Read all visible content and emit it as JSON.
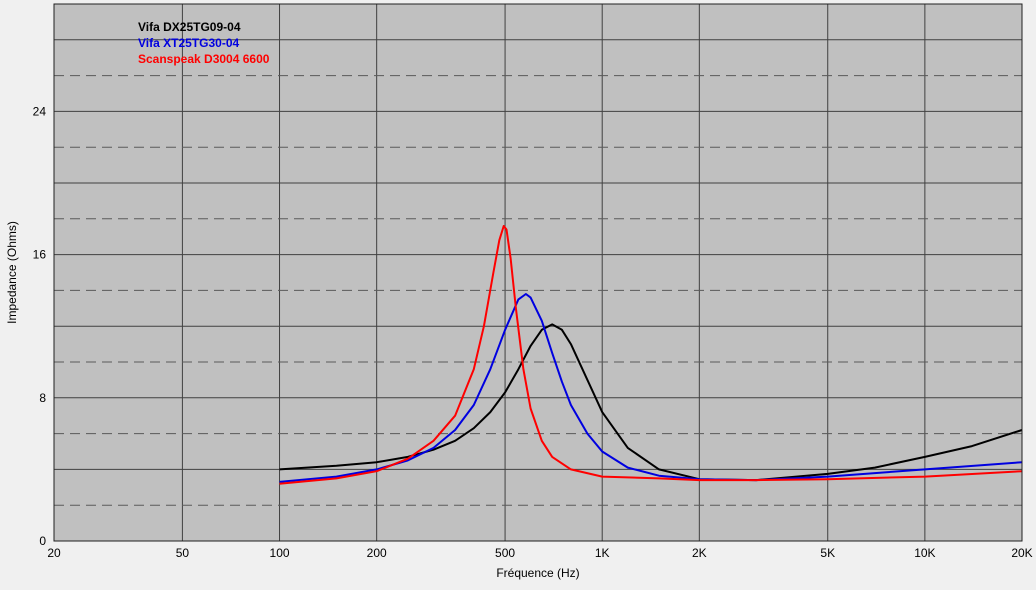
{
  "chart_data": {
    "type": "line",
    "xscale": "log",
    "xlim": [
      20,
      20000
    ],
    "ylim": [
      0,
      30
    ],
    "xlabel": "Fréquence (Hz)",
    "ylabel": "Impedance (Ohms)",
    "x_ticks": [
      {
        "value": 20,
        "label": "20"
      },
      {
        "value": 50,
        "label": "50"
      },
      {
        "value": 100,
        "label": "100"
      },
      {
        "value": 200,
        "label": "200"
      },
      {
        "value": 500,
        "label": "500"
      },
      {
        "value": 1000,
        "label": "1K"
      },
      {
        "value": 2000,
        "label": "2K"
      },
      {
        "value": 5000,
        "label": "5K"
      },
      {
        "value": 10000,
        "label": "10K"
      },
      {
        "value": 20000,
        "label": "20K"
      }
    ],
    "y_ticks": [
      {
        "value": 0,
        "label": "0"
      },
      {
        "value": 8,
        "label": "8"
      },
      {
        "value": 16,
        "label": "16"
      },
      {
        "value": 24,
        "label": "24"
      }
    ],
    "grid": true,
    "legend_placement": "top-left",
    "background": "#c0c0c0",
    "series": [
      {
        "name": "Vifa DX25TG09-04",
        "color": "#000000",
        "x": [
          100,
          150,
          200,
          250,
          300,
          350,
          400,
          450,
          500,
          550,
          600,
          650,
          700,
          750,
          800,
          900,
          1000,
          1200,
          1500,
          2000,
          3000,
          5000,
          7000,
          10000,
          14000,
          20000
        ],
        "y": [
          4.0,
          4.2,
          4.4,
          4.7,
          5.1,
          5.6,
          6.3,
          7.2,
          8.3,
          9.6,
          10.9,
          11.8,
          12.1,
          11.8,
          11.0,
          9.0,
          7.2,
          5.2,
          4.0,
          3.45,
          3.4,
          3.75,
          4.1,
          4.7,
          5.3,
          6.2
        ]
      },
      {
        "name": "Vifa XT25TG30-04",
        "color": "#0000e0",
        "x": [
          100,
          150,
          200,
          250,
          300,
          350,
          400,
          450,
          500,
          550,
          580,
          600,
          650,
          700,
          750,
          800,
          900,
          1000,
          1200,
          1500,
          2000,
          3000,
          5000,
          10000,
          20000
        ],
        "y": [
          3.3,
          3.6,
          4.0,
          4.5,
          5.2,
          6.2,
          7.6,
          9.6,
          11.8,
          13.5,
          13.8,
          13.6,
          12.3,
          10.5,
          8.9,
          7.6,
          6.0,
          5.0,
          4.1,
          3.65,
          3.45,
          3.4,
          3.6,
          4.0,
          4.4
        ]
      },
      {
        "name": "Scanspeak D3004 6600",
        "color": "#ff0000",
        "x": [
          100,
          150,
          200,
          250,
          300,
          350,
          400,
          430,
          460,
          480,
          495,
          505,
          520,
          540,
          570,
          600,
          650,
          700,
          800,
          1000,
          1500,
          2000,
          3000,
          5000,
          10000,
          20000
        ],
        "y": [
          3.2,
          3.5,
          3.9,
          4.6,
          5.6,
          7.0,
          9.6,
          12.0,
          15.0,
          16.8,
          17.6,
          17.4,
          15.8,
          13.0,
          9.6,
          7.4,
          5.6,
          4.7,
          4.0,
          3.6,
          3.5,
          3.4,
          3.4,
          3.45,
          3.6,
          3.9
        ]
      }
    ]
  }
}
